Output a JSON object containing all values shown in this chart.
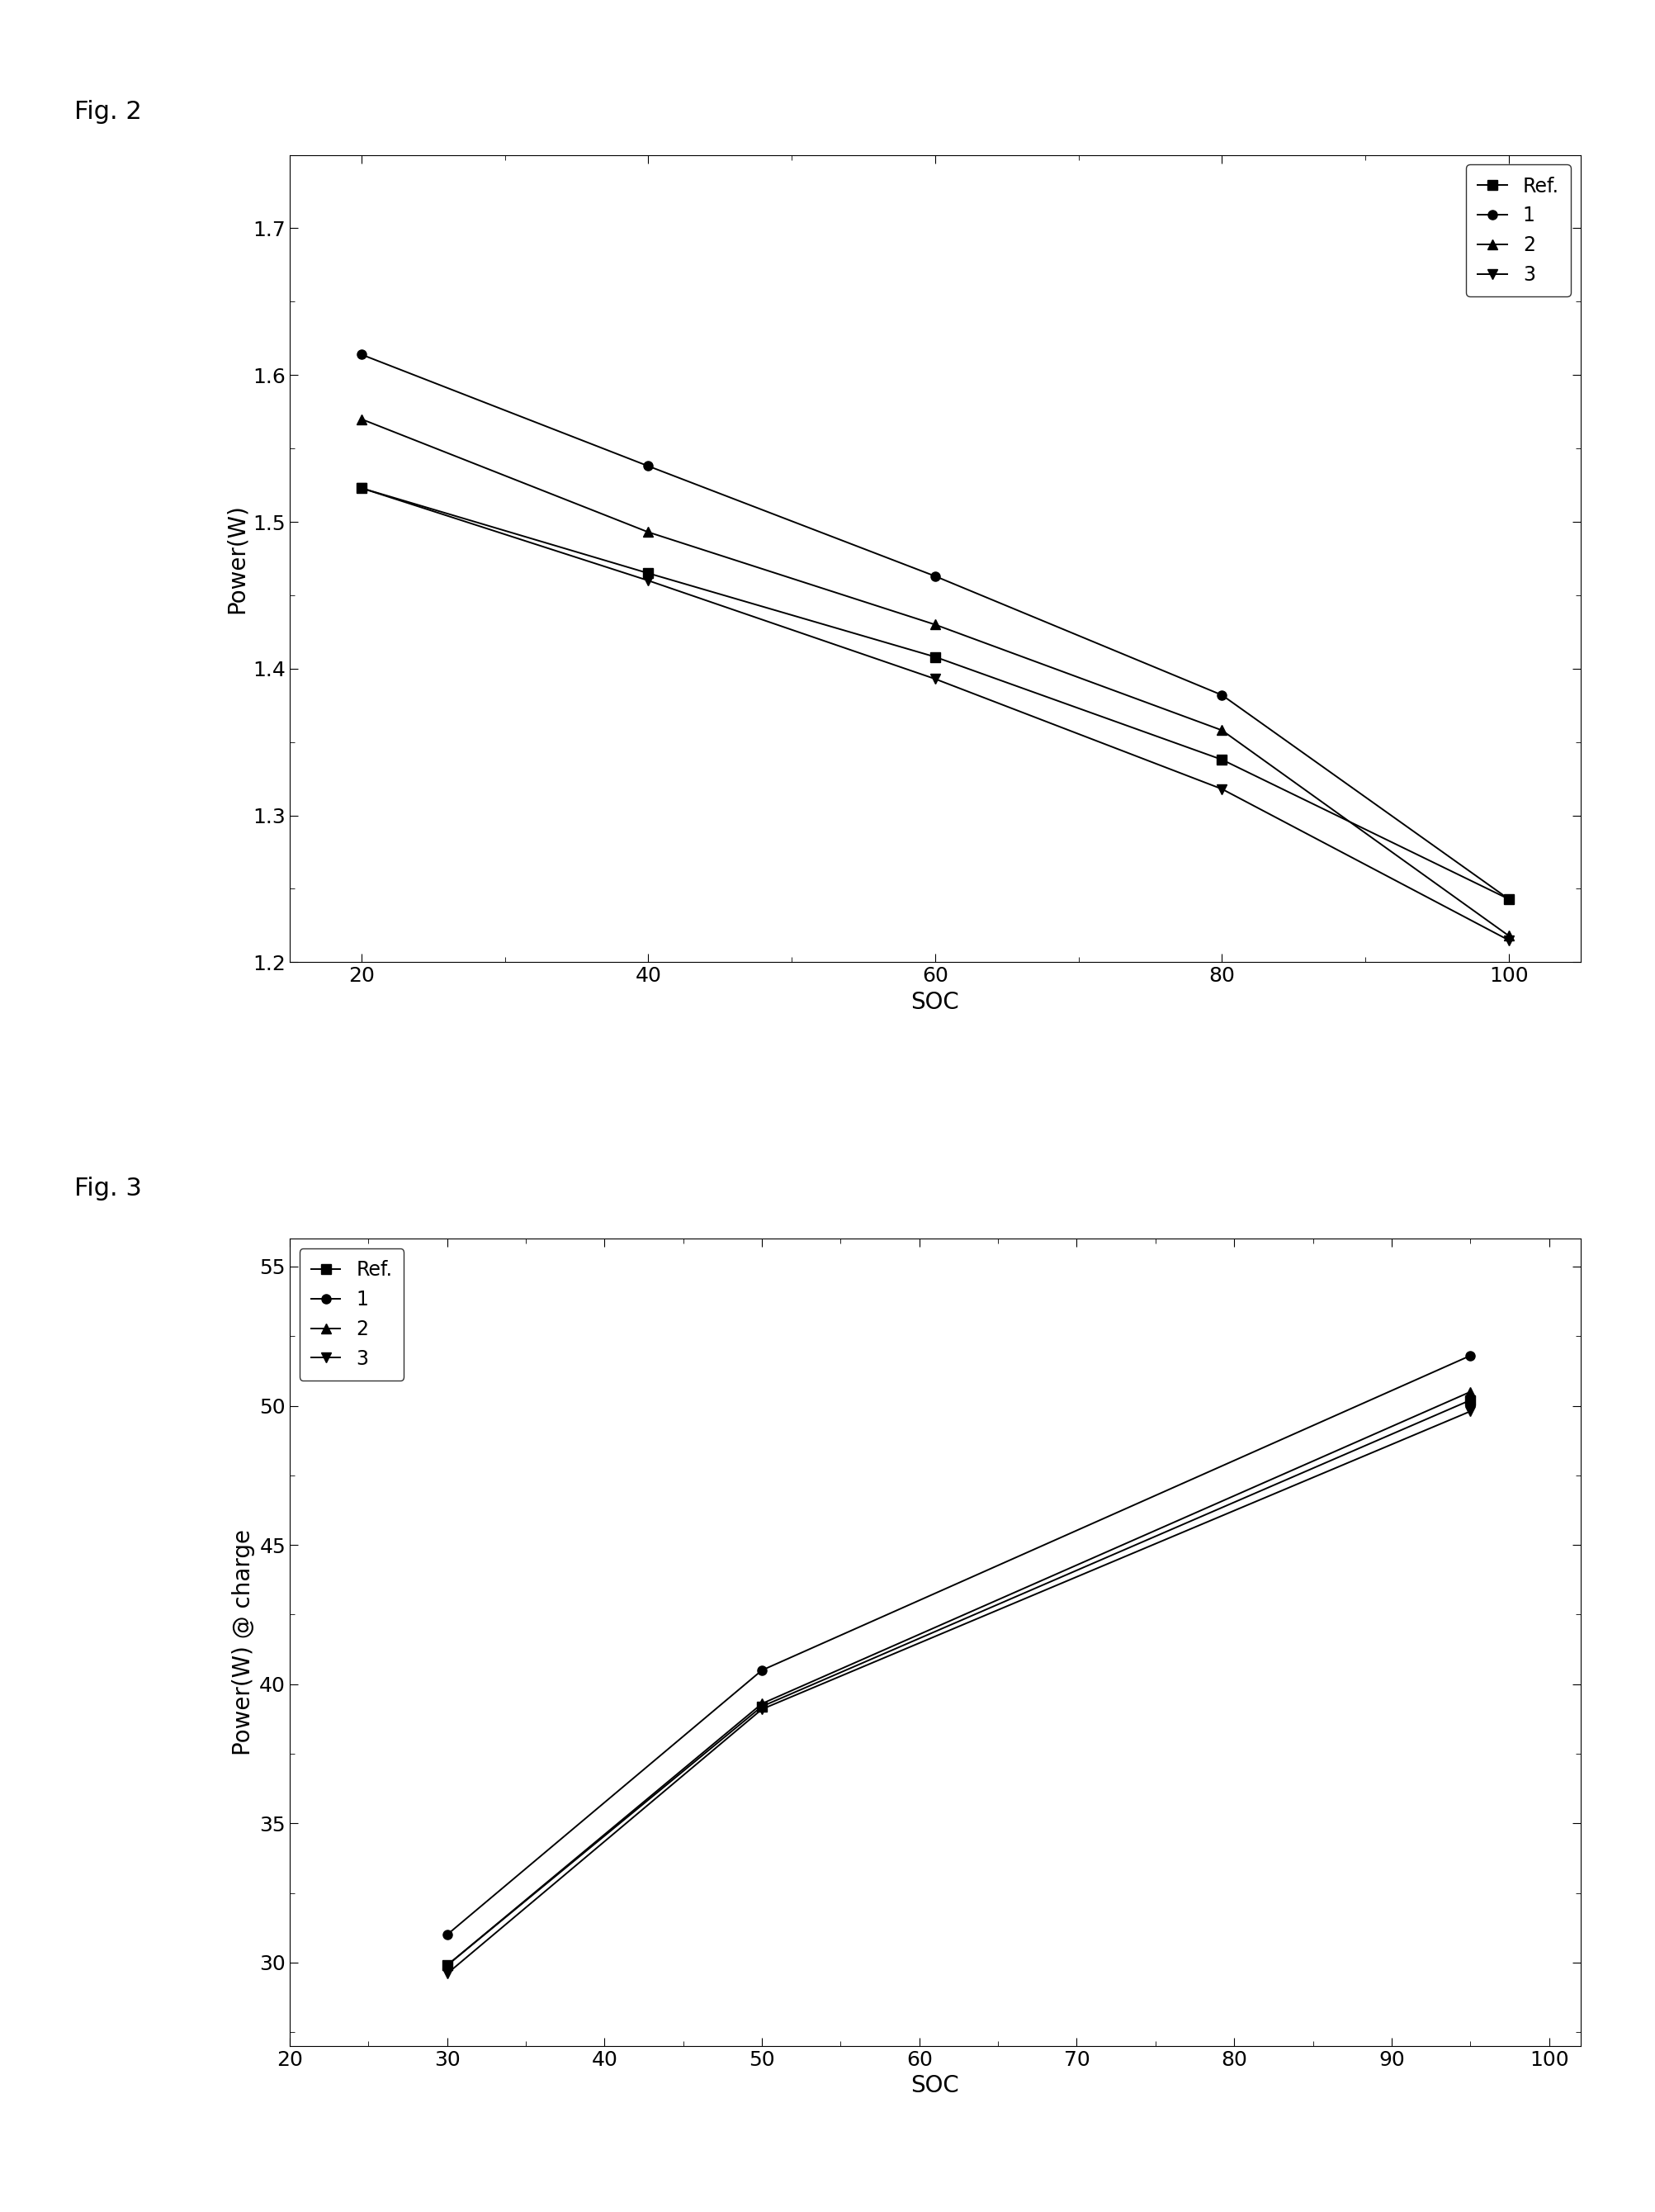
{
  "fig2": {
    "label": "Fig. 2",
    "xlabel": "SOC",
    "ylabel": "Power(W)",
    "x": [
      20,
      40,
      60,
      80,
      100
    ],
    "series": {
      "Ref.": [
        1.523,
        1.465,
        1.408,
        1.338,
        1.243
      ],
      "1": [
        1.614,
        1.538,
        1.463,
        1.382,
        1.243
      ],
      "2": [
        1.57,
        1.493,
        1.43,
        1.358,
        1.218
      ],
      "3": [
        1.523,
        1.46,
        1.393,
        1.318,
        1.215
      ]
    },
    "markers": [
      "s",
      "o",
      "^",
      "v"
    ],
    "ylim": [
      1.2,
      1.75
    ],
    "yticks": [
      1.2,
      1.3,
      1.4,
      1.5,
      1.6,
      1.7
    ],
    "xlim": [
      15,
      105
    ],
    "xticks": [
      20,
      40,
      60,
      80,
      100
    ],
    "legend_loc": "upper right"
  },
  "fig3": {
    "label": "Fig. 3",
    "xlabel": "SOC",
    "ylabel": "Power(W) @ charge",
    "x": [
      30,
      50,
      95
    ],
    "series": {
      "Ref.": [
        29.9,
        39.2,
        50.2
      ],
      "1": [
        31.0,
        40.5,
        51.8
      ],
      "2": [
        29.9,
        39.3,
        50.5
      ],
      "3": [
        29.6,
        39.1,
        49.8
      ]
    },
    "markers": [
      "s",
      "o",
      "^",
      "v"
    ],
    "ylim": [
      27,
      56
    ],
    "yticks": [
      30,
      35,
      40,
      45,
      50,
      55
    ],
    "xlim": [
      20,
      102
    ],
    "xticks": [
      20,
      30,
      40,
      50,
      60,
      70,
      80,
      90,
      100
    ],
    "legend_loc": "upper left"
  },
  "line_color": "#000000",
  "marker_size": 8,
  "line_width": 1.4,
  "font_size_label": 20,
  "font_size_tick": 18,
  "font_size_legend": 17,
  "font_size_fig_label": 22,
  "background_color": "#ffffff"
}
